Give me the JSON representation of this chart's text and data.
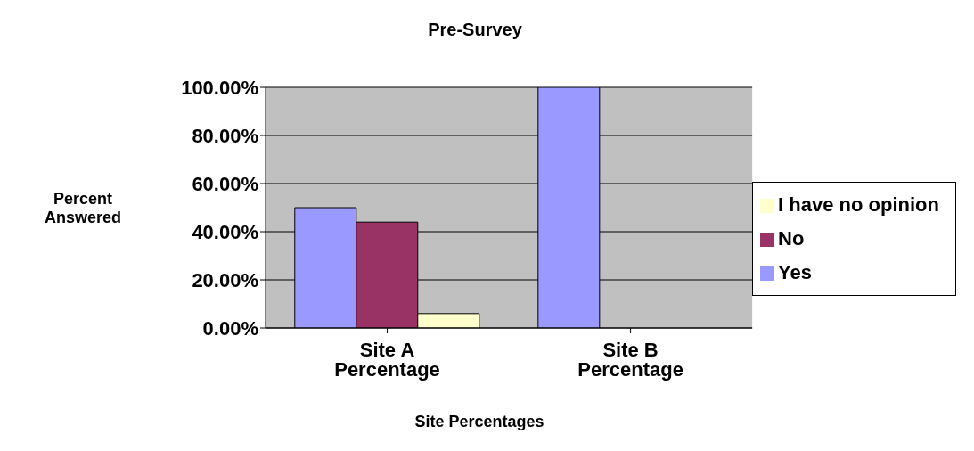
{
  "chart_data": {
    "type": "bar",
    "title": "Pre-Survey",
    "xlabel": "Site Percentages",
    "ylabel": "Percent Answered",
    "categories": [
      "Site A Percentage",
      "Site B Percentage"
    ],
    "series": [
      {
        "name": "Yes",
        "color": "#9999ff",
        "values": [
          50,
          100
        ]
      },
      {
        "name": "No",
        "color": "#993366",
        "values": [
          44,
          0
        ]
      },
      {
        "name": "I have no opinion",
        "color": "#ffffcc",
        "values": [
          6,
          0
        ]
      }
    ],
    "ylim": [
      0,
      100
    ],
    "yticks": [
      {
        "value": 0,
        "label": "0.00%"
      },
      {
        "value": 20,
        "label": "20.00%"
      },
      {
        "value": 40,
        "label": "40.00%"
      },
      {
        "value": 60,
        "label": "60.00%"
      },
      {
        "value": 80,
        "label": "80.00%"
      },
      {
        "value": 100,
        "label": "100.00%"
      }
    ],
    "grid": "y",
    "legend": "right"
  }
}
